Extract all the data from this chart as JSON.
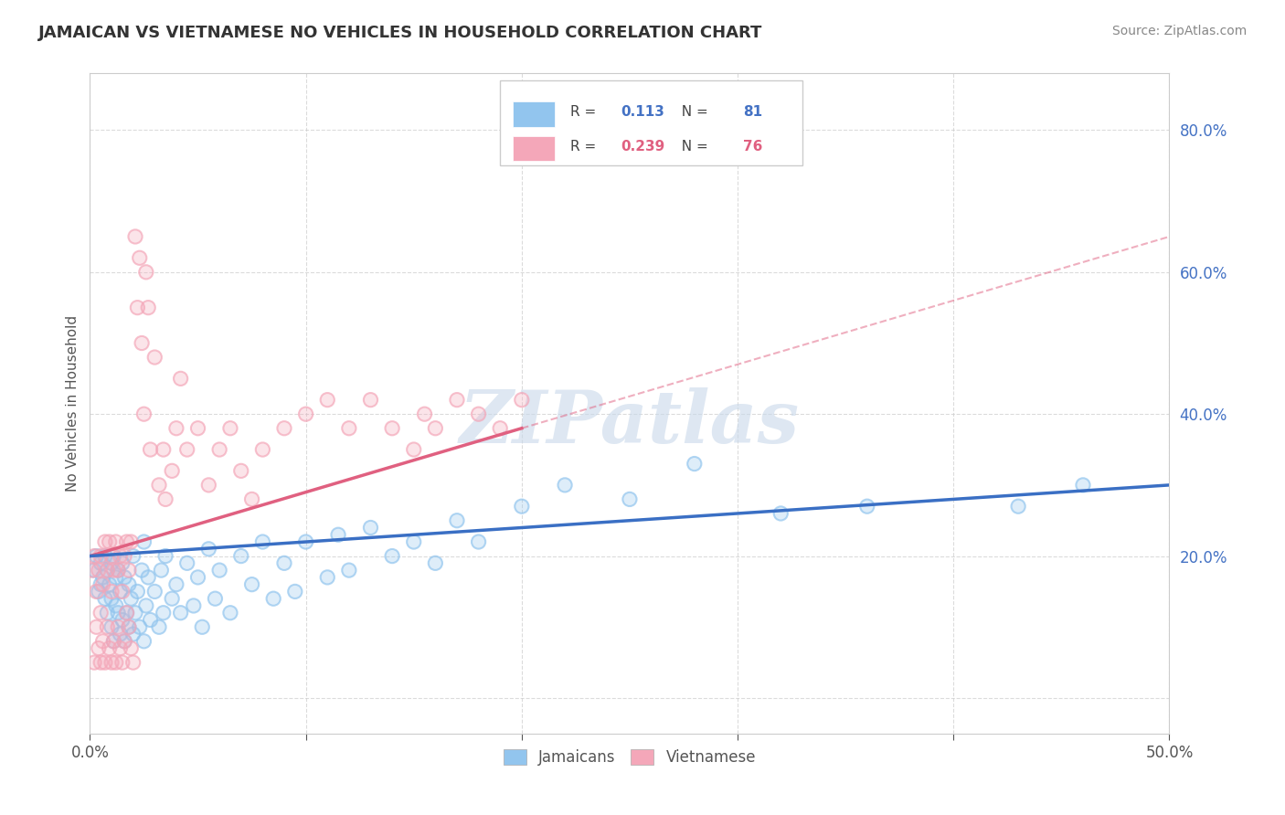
{
  "title": "JAMAICAN VS VIETNAMESE NO VEHICLES IN HOUSEHOLD CORRELATION CHART",
  "source_text": "Source: ZipAtlas.com",
  "ylabel": "No Vehicles in Household",
  "xlim": [
    0.0,
    0.5
  ],
  "ylim": [
    -0.05,
    0.88
  ],
  "xticks": [
    0.0,
    0.1,
    0.2,
    0.3,
    0.4,
    0.5
  ],
  "xtick_labels": [
    "0.0%",
    "",
    "",
    "",
    "",
    "50.0%"
  ],
  "yticks": [
    0.0,
    0.2,
    0.4,
    0.6,
    0.8
  ],
  "ytick_labels": [
    "",
    "20.0%",
    "40.0%",
    "60.0%",
    "80.0%"
  ],
  "jamaicans_color": "#92C5EE",
  "vietnamese_color": "#F4A7B9",
  "jamaicans_trend_color": "#3A6FC4",
  "vietnamese_trend_color": "#E06080",
  "legend_r_jamaicans": "0.113",
  "legend_n_jamaicans": "81",
  "legend_r_vietnamese": "0.239",
  "legend_n_vietnamese": "76",
  "watermark": "ZIPatlas",
  "background_color": "#ffffff",
  "jamaicans_x": [
    0.002,
    0.003,
    0.004,
    0.005,
    0.005,
    0.006,
    0.007,
    0.007,
    0.008,
    0.008,
    0.009,
    0.01,
    0.01,
    0.01,
    0.011,
    0.011,
    0.012,
    0.012,
    0.013,
    0.013,
    0.014,
    0.014,
    0.015,
    0.015,
    0.016,
    0.016,
    0.017,
    0.018,
    0.018,
    0.019,
    0.02,
    0.02,
    0.021,
    0.022,
    0.023,
    0.024,
    0.025,
    0.025,
    0.026,
    0.027,
    0.028,
    0.03,
    0.032,
    0.033,
    0.034,
    0.035,
    0.038,
    0.04,
    0.042,
    0.045,
    0.048,
    0.05,
    0.052,
    0.055,
    0.058,
    0.06,
    0.065,
    0.07,
    0.075,
    0.08,
    0.085,
    0.09,
    0.095,
    0.1,
    0.11,
    0.115,
    0.12,
    0.13,
    0.14,
    0.15,
    0.16,
    0.17,
    0.18,
    0.2,
    0.22,
    0.25,
    0.28,
    0.32,
    0.36,
    0.43,
    0.46
  ],
  "jamaicans_y": [
    0.18,
    0.2,
    0.15,
    0.16,
    0.19,
    0.17,
    0.14,
    0.2,
    0.12,
    0.18,
    0.16,
    0.1,
    0.14,
    0.19,
    0.08,
    0.2,
    0.13,
    0.17,
    0.12,
    0.18,
    0.09,
    0.15,
    0.11,
    0.19,
    0.08,
    0.17,
    0.12,
    0.1,
    0.16,
    0.14,
    0.09,
    0.2,
    0.12,
    0.15,
    0.1,
    0.18,
    0.08,
    0.22,
    0.13,
    0.17,
    0.11,
    0.15,
    0.1,
    0.18,
    0.12,
    0.2,
    0.14,
    0.16,
    0.12,
    0.19,
    0.13,
    0.17,
    0.1,
    0.21,
    0.14,
    0.18,
    0.12,
    0.2,
    0.16,
    0.22,
    0.14,
    0.19,
    0.15,
    0.22,
    0.17,
    0.23,
    0.18,
    0.24,
    0.2,
    0.22,
    0.19,
    0.25,
    0.22,
    0.27,
    0.3,
    0.28,
    0.33,
    0.26,
    0.27,
    0.27,
    0.3
  ],
  "vietnamese_x": [
    0.001,
    0.002,
    0.002,
    0.003,
    0.003,
    0.004,
    0.004,
    0.005,
    0.005,
    0.005,
    0.006,
    0.006,
    0.007,
    0.007,
    0.008,
    0.008,
    0.009,
    0.009,
    0.01,
    0.01,
    0.01,
    0.011,
    0.011,
    0.012,
    0.012,
    0.013,
    0.013,
    0.014,
    0.014,
    0.015,
    0.015,
    0.016,
    0.016,
    0.017,
    0.017,
    0.018,
    0.018,
    0.019,
    0.019,
    0.02,
    0.021,
    0.022,
    0.023,
    0.024,
    0.025,
    0.026,
    0.027,
    0.028,
    0.03,
    0.032,
    0.034,
    0.035,
    0.038,
    0.04,
    0.042,
    0.045,
    0.05,
    0.055,
    0.06,
    0.065,
    0.07,
    0.075,
    0.08,
    0.09,
    0.1,
    0.11,
    0.12,
    0.13,
    0.14,
    0.15,
    0.155,
    0.16,
    0.17,
    0.18,
    0.19,
    0.2
  ],
  "vietnamese_y": [
    0.18,
    0.05,
    0.2,
    0.1,
    0.15,
    0.07,
    0.18,
    0.05,
    0.12,
    0.2,
    0.08,
    0.16,
    0.05,
    0.22,
    0.1,
    0.18,
    0.07,
    0.22,
    0.05,
    0.15,
    0.2,
    0.08,
    0.18,
    0.05,
    0.22,
    0.1,
    0.18,
    0.07,
    0.2,
    0.05,
    0.15,
    0.08,
    0.2,
    0.12,
    0.22,
    0.1,
    0.18,
    0.07,
    0.22,
    0.05,
    0.65,
    0.55,
    0.62,
    0.5,
    0.4,
    0.6,
    0.55,
    0.35,
    0.48,
    0.3,
    0.35,
    0.28,
    0.32,
    0.38,
    0.45,
    0.35,
    0.38,
    0.3,
    0.35,
    0.38,
    0.32,
    0.28,
    0.35,
    0.38,
    0.4,
    0.42,
    0.38,
    0.42,
    0.38,
    0.35,
    0.4,
    0.38,
    0.42,
    0.4,
    0.38,
    0.42
  ]
}
